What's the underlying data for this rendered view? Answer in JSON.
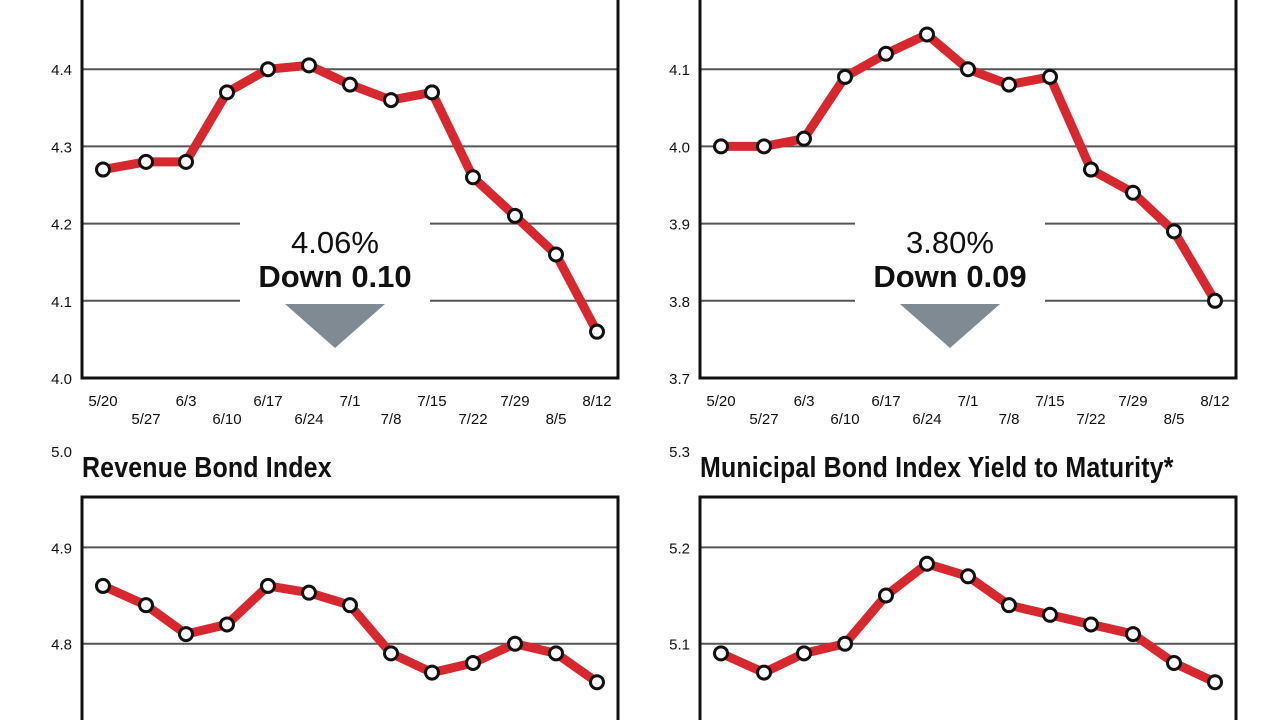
{
  "charts": [
    {
      "title": "",
      "callout": {
        "value": "4.06%",
        "change": "Down 0.10"
      },
      "chart_data": {
        "type": "line",
        "x": [
          "5/20",
          "5/27",
          "6/3",
          "6/10",
          "6/17",
          "6/24",
          "7/1",
          "7/8",
          "7/15",
          "7/22",
          "7/29",
          "8/5",
          "8/12"
        ],
        "values": [
          4.27,
          4.28,
          4.28,
          4.37,
          4.4,
          4.405,
          4.38,
          4.36,
          4.37,
          4.26,
          4.21,
          4.16,
          4.06
        ],
        "yticks": [
          "4.0",
          "4.1",
          "4.2",
          "4.3",
          "4.4"
        ],
        "ylim": [
          4.0,
          4.5
        ],
        "grid": true
      }
    },
    {
      "title": "",
      "callout": {
        "value": "3.80%",
        "change": "Down 0.09"
      },
      "chart_data": {
        "type": "line",
        "x": [
          "5/20",
          "5/27",
          "6/3",
          "6/10",
          "6/17",
          "6/24",
          "7/1",
          "7/8",
          "7/15",
          "7/22",
          "7/29",
          "8/5",
          "8/12"
        ],
        "values": [
          4.0,
          4.0,
          4.01,
          4.09,
          4.12,
          4.145,
          4.1,
          4.08,
          4.09,
          3.97,
          3.94,
          3.89,
          3.8
        ],
        "yticks": [
          "3.7",
          "3.8",
          "3.9",
          "4.0",
          "4.1"
        ],
        "ylim": [
          3.7,
          4.2
        ],
        "grid": true
      }
    },
    {
      "title": "Revenue Bond Index",
      "chart_data": {
        "type": "line",
        "values": [
          4.86,
          4.84,
          4.81,
          4.82,
          4.86,
          4.853,
          4.84,
          4.79,
          4.77,
          4.78,
          4.8,
          4.79,
          4.76
        ],
        "yticks": [
          "4.8",
          "4.9",
          "5.0"
        ],
        "ylim": [
          4.7,
          5.0
        ],
        "grid": true
      }
    },
    {
      "title": "Municipal Bond Index Yield to Maturity*",
      "chart_data": {
        "type": "line",
        "values": [
          5.09,
          5.07,
          5.09,
          5.1,
          5.15,
          5.183,
          5.17,
          5.14,
          5.13,
          5.12,
          5.11,
          5.08,
          5.06
        ],
        "yticks": [
          "5.1",
          "5.2",
          "5.3"
        ],
        "ylim": [
          5.0,
          5.3
        ],
        "grid": true
      }
    }
  ],
  "colors": {
    "line": "#d8282f",
    "marker_fill": "#ffffff",
    "marker_stroke": "#111111",
    "grid": "#555555",
    "frame": "#111111",
    "arrow": "#7f8a92"
  }
}
